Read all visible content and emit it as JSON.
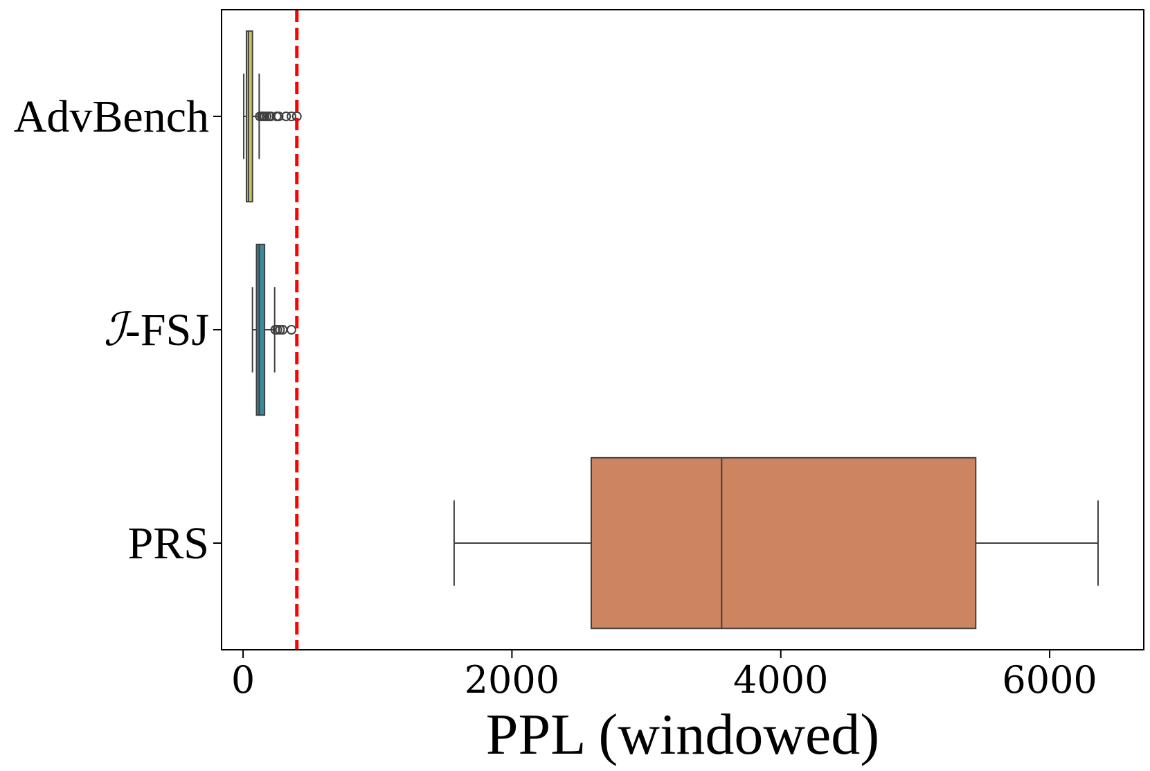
{
  "chart_data": {
    "type": "box",
    "orientation": "horizontal",
    "xlabel": "PPL (windowed)",
    "ylabel": "",
    "title": "",
    "xlim": [
      -160,
      6700
    ],
    "xticks": [
      0,
      2000,
      4000,
      6000
    ],
    "xtick_labels": [
      "0",
      "2000",
      "4000",
      "6000"
    ],
    "grid": false,
    "threshold_line": {
      "x": 400,
      "color": "#ff0000",
      "style": "dashed"
    },
    "categories": [
      {
        "label": "AdvBench",
        "label_prefix": "",
        "label_suffix": "AdvBench",
        "color": "#c8c85a",
        "whisker_low": 5,
        "q1": 25,
        "median": 40,
        "q3": 70,
        "whisker_high": 120,
        "outliers": [
          125,
          140,
          150,
          160,
          175,
          195,
          205,
          250,
          265,
          320,
          360,
          400
        ]
      },
      {
        "label": "ℐ-FSJ",
        "label_prefix": "ℐ",
        "label_suffix": "-FSJ",
        "color": "#3a8a9a",
        "whisker_low": 70,
        "q1": 100,
        "median": 120,
        "q3": 160,
        "whisker_high": 235,
        "outliers": [
          240,
          255,
          275,
          295,
          360
        ]
      },
      {
        "label": "PRS",
        "label_prefix": "",
        "label_suffix": "PRS",
        "color": "#cd8461",
        "whisker_low": 1570,
        "q1": 2590,
        "median": 3560,
        "q3": 5450,
        "whisker_high": 6360,
        "outliers": []
      }
    ]
  }
}
